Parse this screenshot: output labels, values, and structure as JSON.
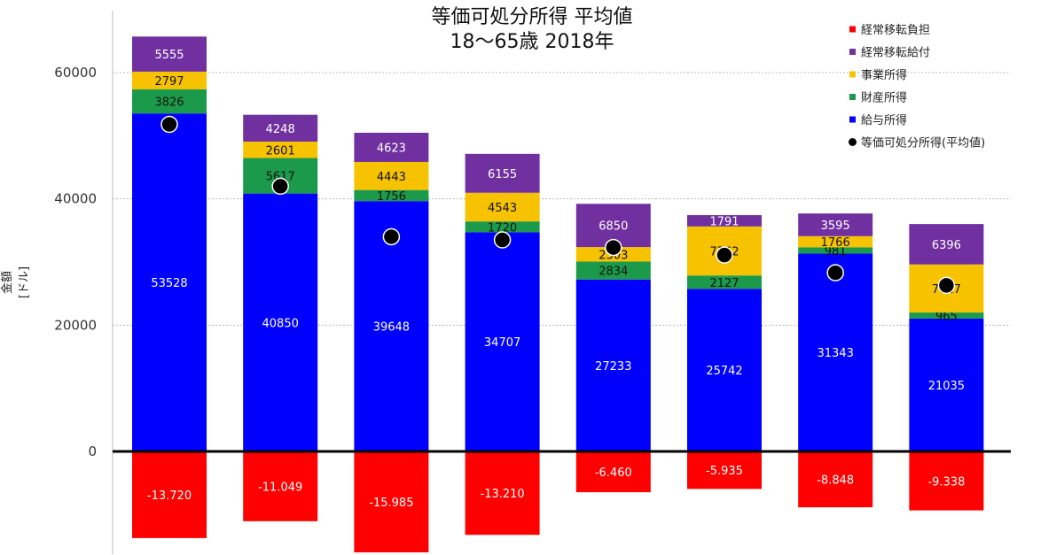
{
  "chart_data": {
    "type": "bar",
    "stacked": true,
    "title_lines": [
      "等価可処分所得 平均値",
      "18〜65歳 2018年"
    ],
    "ylabel": "金額 [ドル]",
    "ylim": [
      -16000,
      70000
    ],
    "yticks": [
      0,
      20000,
      40000,
      60000
    ],
    "grid": true,
    "legend_position": "top-right",
    "categories": [
      "",
      "",
      "",
      "",
      "",
      "",
      "",
      ""
    ],
    "series": [
      {
        "name": "給与所得",
        "color": "#0000ff",
        "label_color": "#ffffff",
        "values": [
          53528,
          40850,
          39648,
          34707,
          27233,
          25742,
          31343,
          21035
        ],
        "labels": [
          "53528",
          "40850",
          "39648",
          "34707",
          "27233",
          "25742",
          "31343",
          "21035"
        ]
      },
      {
        "name": "財産所得",
        "color": "#1a9a4a",
        "label_color": "#111111",
        "values": [
          3826,
          5617,
          1756,
          1720,
          2834,
          2127,
          981,
          965
        ],
        "labels": [
          "3826",
          "5617",
          "1756",
          "1720",
          "2834",
          "2127",
          "981",
          "965"
        ]
      },
      {
        "name": "事業所得",
        "color": "#f7c200",
        "label_color": "#111111",
        "values": [
          2797,
          2601,
          4443,
          4543,
          2303,
          7762,
          1766,
          7617
        ],
        "labels": [
          "2797",
          "2601",
          "4443",
          "4543",
          "2303",
          "7762",
          "1766",
          "7617"
        ]
      },
      {
        "name": "経常移転給付",
        "color": "#7030a0",
        "label_color": "#ffffff",
        "values": [
          5555,
          4248,
          4623,
          6155,
          6850,
          1791,
          3595,
          6396
        ],
        "labels": [
          "5555",
          "4248",
          "4623",
          "6155",
          "6850",
          "1791",
          "3595",
          "6396"
        ]
      },
      {
        "name": "経常移転負担",
        "color": "#ff0000",
        "label_color": "#ffffff",
        "values": [
          -13720,
          -11049,
          -15985,
          -13210,
          -6460,
          -5935,
          -8848,
          -9338
        ],
        "labels": [
          "-13.720",
          "-11.049",
          "-15.985",
          "-13.210",
          "-6.460",
          "-5.935",
          "-8.848",
          "-9.338"
        ]
      }
    ],
    "line_series": {
      "name": "等価可処分所得(平均値)",
      "color": "#000000",
      "values": [
        51800,
        42000,
        34000,
        33500,
        32300,
        31100,
        28300,
        26300
      ]
    },
    "legend": [
      {
        "name": "経常移転負担",
        "color": "#ff0000",
        "marker": "square"
      },
      {
        "name": "経常移転給付",
        "color": "#7030a0",
        "marker": "square"
      },
      {
        "name": "事業所得",
        "color": "#f7c200",
        "marker": "square"
      },
      {
        "name": "財産所得",
        "color": "#1a9a4a",
        "marker": "square"
      },
      {
        "name": "給与所得",
        "color": "#0000ff",
        "marker": "square"
      },
      {
        "name": "等価可処分所得(平均値)",
        "color": "#000000",
        "marker": "circle"
      }
    ]
  }
}
